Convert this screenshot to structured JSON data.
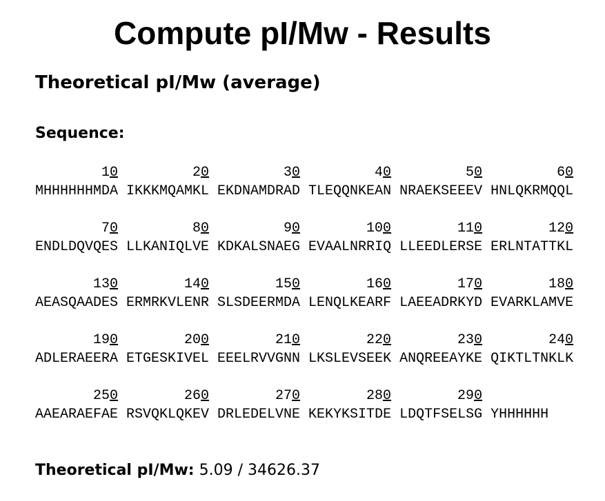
{
  "header": {
    "title": "Compute pI/Mw - Results",
    "subtitle": "Theoretical pI/Mw (average)"
  },
  "sequence": {
    "label": "Sequence:",
    "rows": [
      {
        "chunks": [
          {
            "position": 10,
            "residues": "MHHHHHHMDA"
          },
          {
            "position": 20,
            "residues": "IKKKMQAMKL"
          },
          {
            "position": 30,
            "residues": "EKDNAMDRAD"
          },
          {
            "position": 40,
            "residues": "TLEQQNKEAN"
          },
          {
            "position": 50,
            "residues": "NRAEKSEEEV"
          },
          {
            "position": 60,
            "residues": "HNLQKRMQQL"
          }
        ]
      },
      {
        "chunks": [
          {
            "position": 70,
            "residues": "ENDLDQVQES"
          },
          {
            "position": 80,
            "residues": "LLKANIQLVE"
          },
          {
            "position": 90,
            "residues": "KDKALSNAEG"
          },
          {
            "position": 100,
            "residues": "EVAALNRRIQ"
          },
          {
            "position": 110,
            "residues": "LLEEDLERSE"
          },
          {
            "position": 120,
            "residues": "ERLNTATTKL"
          }
        ]
      },
      {
        "chunks": [
          {
            "position": 130,
            "residues": "AEASQAADES"
          },
          {
            "position": 140,
            "residues": "ERMRKVLENR"
          },
          {
            "position": 150,
            "residues": "SLSDEERMDA"
          },
          {
            "position": 160,
            "residues": "LENQLKEARF"
          },
          {
            "position": 170,
            "residues": "LAEEADRKYD"
          },
          {
            "position": 180,
            "residues": "EVARKLAMVE"
          }
        ]
      },
      {
        "chunks": [
          {
            "position": 190,
            "residues": "ADLERAEERA"
          },
          {
            "position": 200,
            "residues": "ETGESKIVEL"
          },
          {
            "position": 210,
            "residues": "EEELRVVGNN"
          },
          {
            "position": 220,
            "residues": "LKSLEVSEEK"
          },
          {
            "position": 230,
            "residues": "ANQREEAYKE"
          },
          {
            "position": 240,
            "residues": "QIKTLTNKLK"
          }
        ]
      },
      {
        "chunks": [
          {
            "position": 250,
            "residues": "AAEARAEFAE"
          },
          {
            "position": 260,
            "residues": "RSVQKLQKEV"
          },
          {
            "position": 270,
            "residues": "DRLEDELVNE"
          },
          {
            "position": 280,
            "residues": "KEKYKSITDE"
          },
          {
            "position": 290,
            "residues": "LDQTFSELSG"
          },
          {
            "residues": "YHHHHHH"
          }
        ]
      }
    ]
  },
  "result": {
    "label": "Theoretical pI/Mw:",
    "value": "5.09 / 34626.37"
  }
}
